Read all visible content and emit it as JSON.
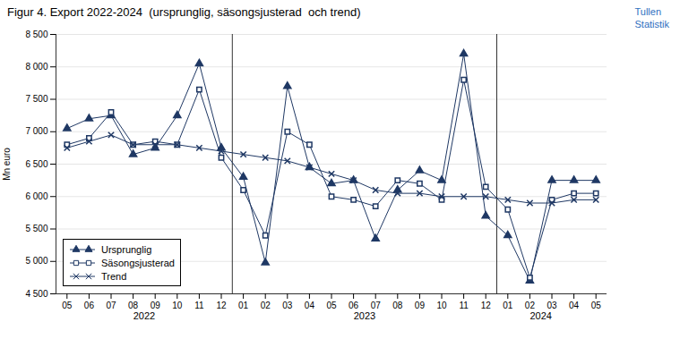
{
  "chart_data": {
    "type": "line",
    "title": "Figur 4. Export 2022-2024  (ursprunglig, säsongsjusterad  och trend)",
    "ylabel": "Mn euro",
    "categories": [
      "05",
      "06",
      "07",
      "08",
      "09",
      "10",
      "11",
      "12",
      "01",
      "02",
      "03",
      "04",
      "05",
      "06",
      "07",
      "08",
      "09",
      "10",
      "11",
      "12",
      "01",
      "02",
      "03",
      "04",
      "05"
    ],
    "series": [
      {
        "name": "Ursprunglig",
        "color": "#1F3864",
        "marker": "triangle",
        "values": [
          7050,
          7200,
          7250,
          6650,
          6750,
          7250,
          8050,
          6750,
          6300,
          4980,
          7700,
          6450,
          6200,
          6250,
          5350,
          6100,
          6400,
          6250,
          8200,
          5700,
          5400,
          4700,
          6250,
          6250,
          6250
        ]
      },
      {
        "name": "Säsongsjusterad",
        "color": "#1F3864",
        "marker": "square_open",
        "values": [
          6800,
          6900,
          7300,
          6800,
          6850,
          6800,
          7650,
          6600,
          6100,
          5400,
          7000,
          6800,
          6000,
          5950,
          5850,
          6250,
          6200,
          5950,
          7800,
          6150,
          5800,
          4750,
          5950,
          6050,
          6050
        ]
      },
      {
        "name": "Trend",
        "color": "#1F3864",
        "marker": "x",
        "values": [
          6750,
          6850,
          6950,
          6800,
          6800,
          6800,
          6750,
          6700,
          6650,
          6600,
          6550,
          6450,
          6350,
          6250,
          6100,
          6050,
          6050,
          6000,
          6000,
          6000,
          5950,
          5900,
          5900,
          5950,
          5950
        ]
      }
    ],
    "ylim": [
      4500,
      8500
    ],
    "yticks": [
      {
        "value": 4500,
        "label": "4 500"
      },
      {
        "value": 5000,
        "label": "5 000"
      },
      {
        "value": 5500,
        "label": "5 500"
      },
      {
        "value": 6000,
        "label": "6 000"
      },
      {
        "value": 6500,
        "label": "6 500"
      },
      {
        "value": 7000,
        "label": "7 000"
      },
      {
        "value": 7500,
        "label": "7 500"
      },
      {
        "value": 8000,
        "label": "8 000"
      },
      {
        "value": 8500,
        "label": "8 500"
      }
    ],
    "grid": true,
    "legend": "lower left",
    "annotations": [
      {
        "text": "2022",
        "x": 3.5
      },
      {
        "text": "2023",
        "x": 13.5
      },
      {
        "text": "2024",
        "x": 21.5
      },
      {
        "text": "Tullen",
        "color": "#3070c0"
      },
      {
        "text": "Statistik",
        "color": "#3070c0"
      }
    ]
  }
}
